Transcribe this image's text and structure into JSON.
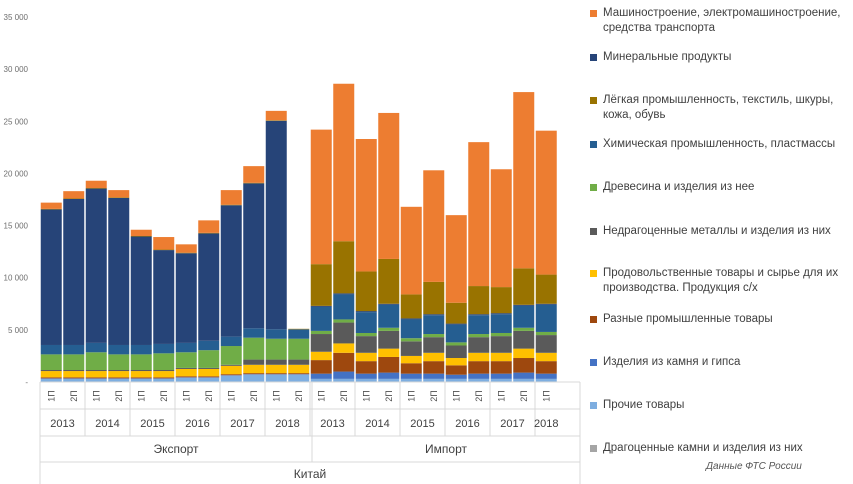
{
  "chart_data": {
    "type": "stacked-bar",
    "y_ticks": [
      "35 000",
      "30 000",
      "25 000",
      "20 000",
      "15 000",
      "10 000",
      "5 000",
      "-"
    ],
    "ylim": [
      0,
      35000
    ],
    "half_labels": [
      "1П",
      "2П"
    ],
    "group_labels": [
      "Экспорт",
      "Импорт"
    ],
    "country_label": "Китай",
    "source_note": "Данные ФТС России",
    "groups": [
      {
        "name": "Экспорт",
        "years": [
          "2013",
          "2014",
          "2015",
          "2016",
          "2017",
          "2018"
        ],
        "bar_count": 12
      },
      {
        "name": "Импорт",
        "years": [
          "2013",
          "2014",
          "2015",
          "2016",
          "2017",
          "2018"
        ],
        "bar_count": 11
      }
    ],
    "series": [
      {
        "name": "Прочие товары",
        "color": "#7eaee0",
        "values": [
          300,
          300,
          300,
          300,
          300,
          300,
          400,
          400,
          600,
          700,
          700,
          700,
          300,
          300,
          300,
          300,
          300,
          300,
          300,
          300,
          300,
          300,
          300
        ]
      },
      {
        "name": "Изделия из камня и гипса",
        "color": "#4472c4",
        "values": [
          50,
          50,
          50,
          50,
          50,
          50,
          50,
          50,
          50,
          50,
          50,
          50,
          500,
          700,
          500,
          600,
          500,
          500,
          400,
          500,
          500,
          600,
          500
        ]
      },
      {
        "name": "Разные промышленные товары",
        "color": "#9e480e",
        "values": [
          100,
          100,
          100,
          100,
          100,
          100,
          100,
          100,
          100,
          100,
          100,
          100,
          1300,
          1800,
          1200,
          1500,
          1000,
          1200,
          900,
          1200,
          1200,
          1400,
          1200
        ]
      },
      {
        "name": "Продовольственные товары и сырье для их производства. Продукция с/х",
        "color": "#ffc000",
        "values": [
          600,
          600,
          600,
          600,
          600,
          600,
          700,
          700,
          800,
          800,
          800,
          800,
          800,
          900,
          800,
          800,
          700,
          800,
          700,
          800,
          800,
          900,
          800
        ]
      },
      {
        "name": "Недрагоценные металлы и изделия из них",
        "color": "#5a5a5a",
        "values": [
          100,
          100,
          100,
          100,
          100,
          100,
          100,
          100,
          100,
          500,
          500,
          500,
          1700,
          2000,
          1600,
          1700,
          1400,
          1500,
          1200,
          1500,
          1600,
          1700,
          1700
        ]
      },
      {
        "name": "Древесина и изделия из нее",
        "color": "#70ad47",
        "values": [
          1500,
          1500,
          1700,
          1500,
          1500,
          1600,
          1500,
          1700,
          1800,
          2100,
          2000,
          2000,
          300,
          300,
          300,
          300,
          300,
          300,
          300,
          300,
          300,
          300,
          300
        ]
      },
      {
        "name": "Химическая промышленность, пластмассы",
        "color": "#255e91",
        "values": [
          900,
          900,
          900,
          900,
          900,
          900,
          900,
          900,
          900,
          900,
          900,
          900,
          2300,
          2400,
          2000,
          2200,
          1800,
          1800,
          1700,
          1800,
          1800,
          2100,
          2600
        ]
      },
      {
        "name": "Минеральные продукты",
        "color": "#264478",
        "values": [
          13000,
          14000,
          14800,
          14100,
          10400,
          9000,
          8600,
          10300,
          12600,
          13900,
          20000,
          0,
          100,
          100,
          100,
          100,
          100,
          100,
          100,
          100,
          100,
          100,
          100
        ]
      },
      {
        "name": "Лёгкая промышленность, текстиль, шкуры, кожа, обувь",
        "color": "#997300",
        "values": [
          50,
          50,
          50,
          50,
          50,
          50,
          50,
          50,
          50,
          50,
          50,
          50,
          4000,
          5000,
          3800,
          4300,
          2300,
          3100,
          2000,
          2700,
          2500,
          3500,
          2800
        ]
      },
      {
        "name": "Машиностроение, электромашиностроение, средства транспорта",
        "color": "#ed7d31",
        "values": [
          600,
          700,
          700,
          700,
          600,
          1200,
          800,
          1200,
          1400,
          1600,
          900,
          0,
          12900,
          15100,
          12700,
          14000,
          8400,
          10700,
          8400,
          13800,
          11300,
          16900,
          13800
        ]
      },
      {
        "name": "Драгоценные камни и изделия из них",
        "color": "#a5a5a5",
        "values": [
          0,
          0,
          0,
          0,
          0,
          0,
          0,
          0,
          0,
          0,
          0,
          0,
          0,
          0,
          0,
          0,
          0,
          0,
          0,
          0,
          0,
          0,
          0
        ]
      }
    ],
    "legend_order": [
      9,
      7,
      8,
      6,
      5,
      4,
      3,
      2,
      1,
      0,
      10
    ]
  }
}
